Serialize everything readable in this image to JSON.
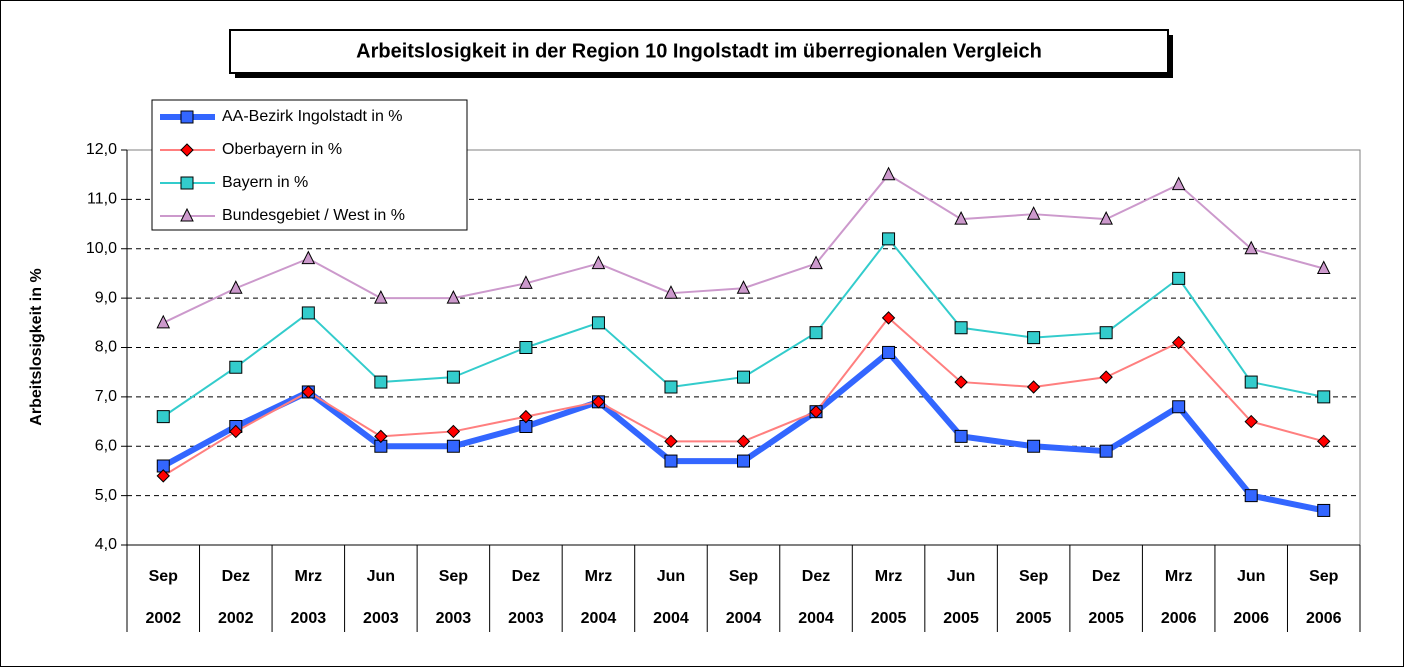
{
  "chart_data": {
    "type": "line",
    "title": "Arbeitslosigkeit in der Region 10 Ingolstadt im überregionalen Vergleich",
    "y_label": "Arbeitslosigkeit in %",
    "categories": [
      [
        "Sep",
        "2002"
      ],
      [
        "Dez",
        "2002"
      ],
      [
        "Mrz",
        "2003"
      ],
      [
        "Jun",
        "2003"
      ],
      [
        "Sep",
        "2003"
      ],
      [
        "Dez",
        "2003"
      ],
      [
        "Mrz",
        "2004"
      ],
      [
        "Jun",
        "2004"
      ],
      [
        "Sep",
        "2004"
      ],
      [
        "Dez",
        "2004"
      ],
      [
        "Mrz",
        "2005"
      ],
      [
        "Jun",
        "2005"
      ],
      [
        "Sep",
        "2005"
      ],
      [
        "Dez",
        "2005"
      ],
      [
        "Mrz",
        "2006"
      ],
      [
        "Jun",
        "2006"
      ],
      [
        "Sep",
        "2006"
      ]
    ],
    "series": [
      {
        "name": "AA-Bezirk Ingolstadt in %",
        "color": "#3366ff",
        "marker": "square",
        "marker_color": "#3366ff",
        "line_width": 6,
        "values": [
          5.6,
          6.4,
          7.1,
          6.0,
          6.0,
          6.4,
          6.9,
          5.7,
          5.7,
          6.7,
          7.9,
          6.2,
          6.0,
          5.9,
          6.8,
          5.0,
          4.7
        ]
      },
      {
        "name": "Oberbayern in %",
        "color": "#ff7f7f",
        "marker": "diamond",
        "marker_color": "#ff0000",
        "line_width": 2,
        "values": [
          5.4,
          6.3,
          7.1,
          6.2,
          6.3,
          6.6,
          6.9,
          6.1,
          6.1,
          6.7,
          8.6,
          7.3,
          7.2,
          7.4,
          8.1,
          6.5,
          6.1
        ]
      },
      {
        "name": "Bayern in %",
        "color": "#33cccc",
        "marker": "square",
        "marker_color": "#33cccc",
        "line_width": 2,
        "values": [
          6.6,
          7.6,
          8.7,
          7.3,
          7.4,
          8.0,
          8.5,
          7.2,
          7.4,
          8.3,
          10.2,
          8.4,
          8.2,
          8.3,
          9.4,
          7.3,
          7.0
        ]
      },
      {
        "name": "Bundesgebiet / West in %",
        "color": "#cc99cc",
        "marker": "triangle",
        "marker_color": "#cc99cc",
        "line_width": 2,
        "values": [
          8.5,
          9.2,
          9.8,
          9.0,
          9.0,
          9.3,
          9.7,
          9.1,
          9.2,
          9.7,
          11.5,
          10.6,
          10.7,
          10.6,
          11.3,
          10.0,
          9.6
        ]
      }
    ],
    "ylim": [
      4,
      12
    ],
    "yticks": [
      {
        "value": 4,
        "label": "4,0"
      },
      {
        "value": 5,
        "label": "5,0"
      },
      {
        "value": 6,
        "label": "6,0"
      },
      {
        "value": 7,
        "label": "7,0"
      },
      {
        "value": 8,
        "label": "8,0"
      },
      {
        "value": 9,
        "label": "9,0"
      },
      {
        "value": 10,
        "label": "10,0"
      },
      {
        "value": 11,
        "label": "11,0"
      },
      {
        "value": 12,
        "label": "12,0"
      }
    ],
    "grid": true,
    "legend": "top-left"
  }
}
